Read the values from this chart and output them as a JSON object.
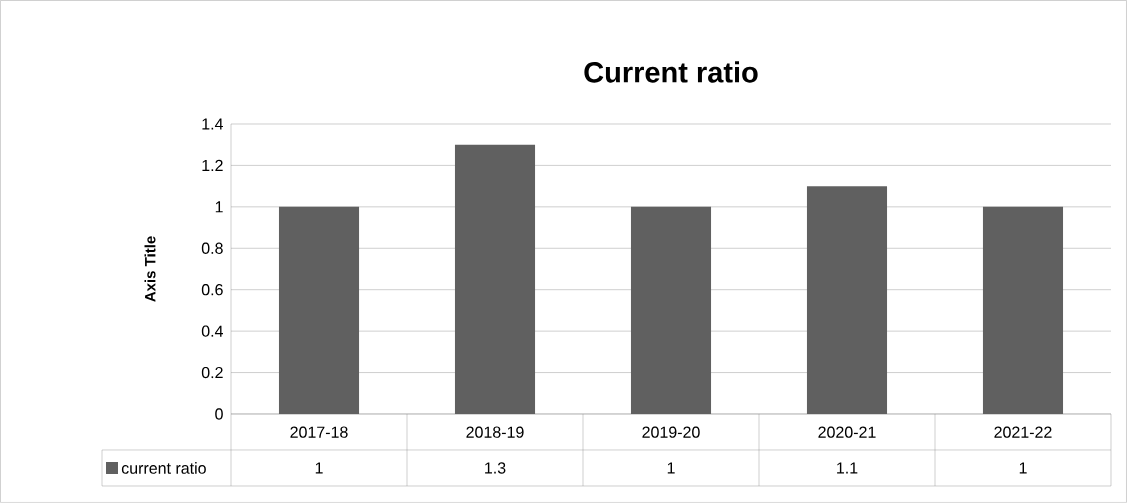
{
  "chart_data": {
    "type": "bar",
    "title": "Current ratio",
    "ylabel": "Axis Title",
    "categories": [
      "2017-18",
      "2018-19",
      "2019-20",
      "2020-21",
      "2021-22"
    ],
    "series": [
      {
        "name": "current ratio",
        "color": "#606060",
        "values": [
          1,
          1.3,
          1,
          1.1,
          1
        ]
      }
    ],
    "ylim": [
      0,
      1.4
    ],
    "yticks": [
      0,
      0.2,
      0.4,
      0.6,
      0.8,
      1,
      1.2,
      1.4
    ],
    "grid": "y",
    "legend": "bottom",
    "data_labels": true
  }
}
